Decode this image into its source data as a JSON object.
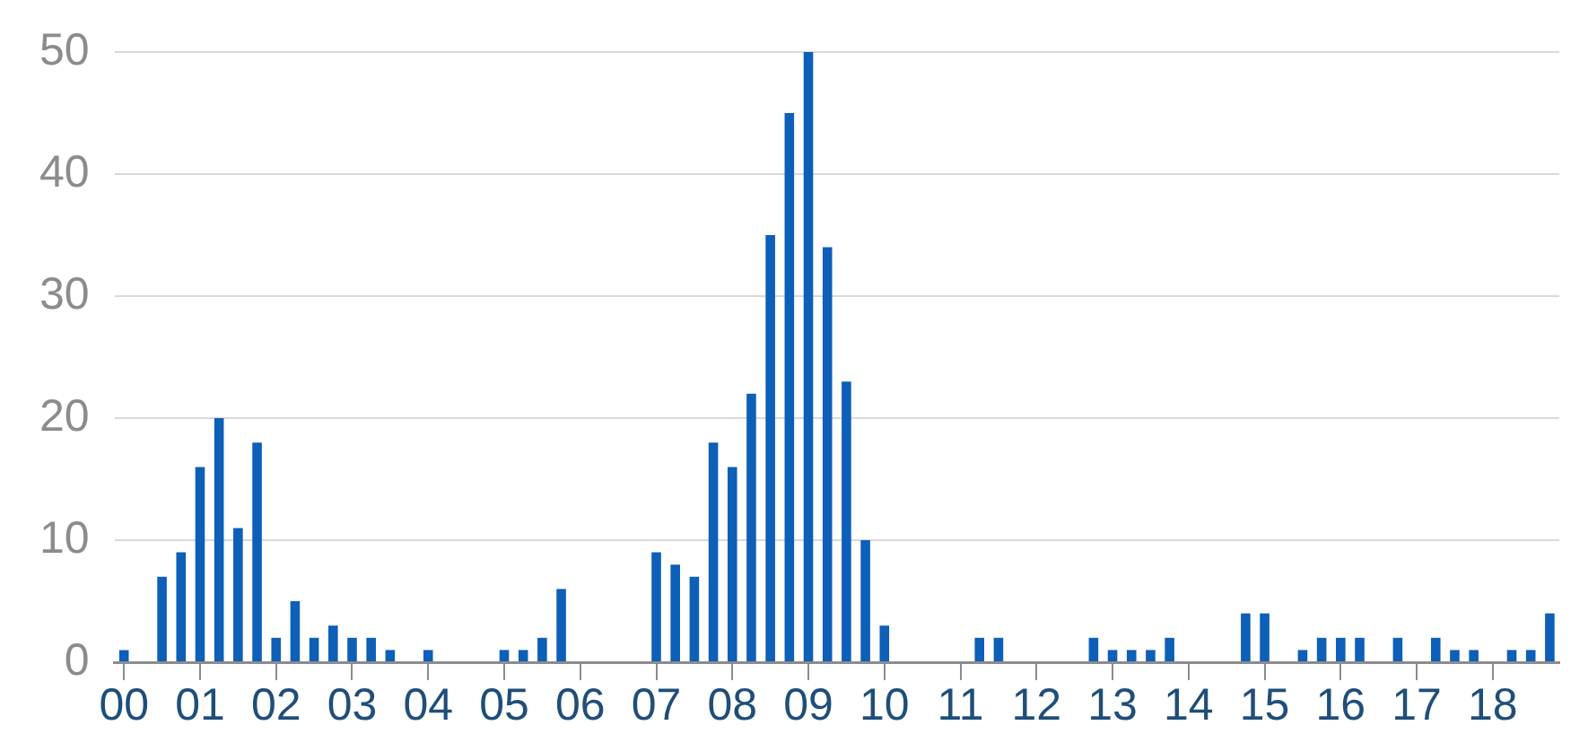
{
  "chart_data": {
    "type": "bar",
    "categories": [
      "00",
      null,
      null,
      null,
      "01",
      null,
      null,
      null,
      "02",
      null,
      null,
      null,
      "03",
      null,
      null,
      null,
      "04",
      null,
      null,
      null,
      "05",
      null,
      null,
      null,
      "06",
      null,
      null,
      null,
      "07",
      null,
      null,
      null,
      "08",
      null,
      null,
      null,
      "09",
      null,
      null,
      null,
      "10",
      null,
      null,
      null,
      "11",
      null,
      null,
      null,
      "12",
      null,
      null,
      null,
      "13",
      null,
      null,
      null,
      "14",
      null,
      null,
      null,
      "15",
      null,
      null,
      null,
      "16",
      null,
      null,
      null,
      "17",
      null,
      null,
      null,
      "18",
      null,
      null,
      null
    ],
    "values": [
      1,
      0,
      7,
      9,
      16,
      20,
      11,
      18,
      2,
      5,
      2,
      3,
      2,
      2,
      1,
      0,
      1,
      0,
      0,
      0,
      1,
      1,
      2,
      6,
      0,
      0,
      0,
      0,
      9,
      8,
      7,
      18,
      16,
      22,
      35,
      45,
      50,
      34,
      23,
      10,
      3,
      0,
      0,
      0,
      0,
      2,
      2,
      0,
      0,
      0,
      0,
      2,
      1,
      1,
      1,
      2,
      0,
      0,
      0,
      4,
      4,
      0,
      1,
      2,
      2,
      2,
      0,
      2,
      0,
      2,
      1,
      1,
      0,
      1,
      1,
      4
    ],
    "color": "#0d5fb8",
    "ylim": [
      0,
      50
    ],
    "yticks": [
      0,
      10,
      20,
      30,
      40,
      50
    ],
    "grid": "y",
    "legend": false
  }
}
